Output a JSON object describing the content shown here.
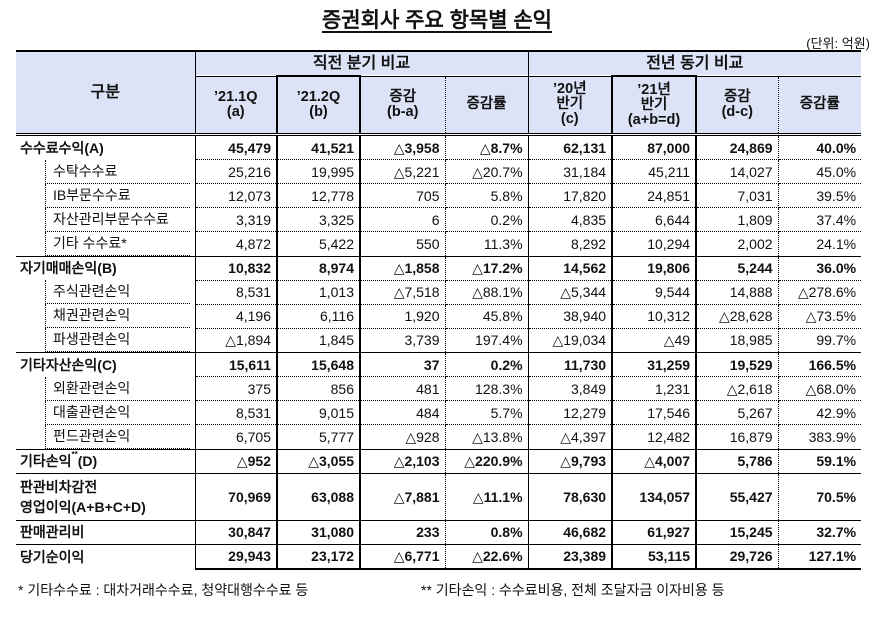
{
  "title": "증권회사 주요 항목별 손익",
  "unit": "(단위: 억원)",
  "header": {
    "row_label": "구분",
    "group1": "직전 분기 비교",
    "group2": "전년 동기 비교",
    "columns": [
      {
        "line1": "’21.1Q",
        "line2": "(a)"
      },
      {
        "line1": "’21.2Q",
        "line2": "(b)"
      },
      {
        "line1": "증감",
        "line2": "(b-a)"
      },
      {
        "line1": "증감률",
        "line2": ""
      },
      {
        "line1": "’20년",
        "line2": "반기",
        "line3": "(c)"
      },
      {
        "line1": "’21년",
        "line2": "반기",
        "line3": "(a+b=d)"
      },
      {
        "line1": "증감",
        "line2": "(d-c)"
      },
      {
        "line1": "증감률",
        "line2": ""
      }
    ]
  },
  "rows": [
    {
      "label": "수수료수익(A)",
      "type": "major",
      "values": [
        "45,479",
        "41,521",
        "△3,958",
        "△8.7%",
        "62,131",
        "87,000",
        "24,869",
        "40.0%"
      ]
    },
    {
      "label": "수탁수수료",
      "type": "sub",
      "values": [
        "25,216",
        "19,995",
        "△5,221",
        "△20.7%",
        "31,184",
        "45,211",
        "14,027",
        "45.0%"
      ]
    },
    {
      "label": "IB부문수수료",
      "type": "sub",
      "values": [
        "12,073",
        "12,778",
        "705",
        "5.8%",
        "17,820",
        "24,851",
        "7,031",
        "39.5%"
      ]
    },
    {
      "label": "자산관리부문수수료",
      "type": "sub",
      "values": [
        "3,319",
        "3,325",
        "6",
        "0.2%",
        "4,835",
        "6,644",
        "1,809",
        "37.4%"
      ]
    },
    {
      "label": "기타 수수료*",
      "type": "sub",
      "values": [
        "4,872",
        "5,422",
        "550",
        "11.3%",
        "8,292",
        "10,294",
        "2,002",
        "24.1%"
      ]
    },
    {
      "label": "자기매매손익(B)",
      "type": "major",
      "values": [
        "10,832",
        "8,974",
        "△1,858",
        "△17.2%",
        "14,562",
        "19,806",
        "5,244",
        "36.0%"
      ]
    },
    {
      "label": "주식관련손익",
      "type": "sub",
      "values": [
        "8,531",
        "1,013",
        "△7,518",
        "△88.1%",
        "△5,344",
        "9,544",
        "14,888",
        "△278.6%"
      ]
    },
    {
      "label": "채권관련손익",
      "type": "sub",
      "values": [
        "4,196",
        "6,116",
        "1,920",
        "45.8%",
        "38,940",
        "10,312",
        "△28,628",
        "△73.5%"
      ]
    },
    {
      "label": "파생관련손익",
      "type": "sub",
      "values": [
        "△1,894",
        "1,845",
        "3,739",
        "197.4%",
        "△19,034",
        "△49",
        "18,985",
        "99.7%"
      ]
    },
    {
      "label": "기타자산손익(C)",
      "type": "major",
      "values": [
        "15,611",
        "15,648",
        "37",
        "0.2%",
        "11,730",
        "31,259",
        "19,529",
        "166.5%"
      ]
    },
    {
      "label": "외환관련손익",
      "type": "sub",
      "values": [
        "375",
        "856",
        "481",
        "128.3%",
        "3,849",
        "1,231",
        "△2,618",
        "△68.0%"
      ]
    },
    {
      "label": "대출관련손익",
      "type": "sub",
      "values": [
        "8,531",
        "9,015",
        "484",
        "5.7%",
        "12,279",
        "17,546",
        "5,267",
        "42.9%"
      ]
    },
    {
      "label": "펀드관련손익",
      "type": "sub",
      "values": [
        "6,705",
        "5,777",
        "△928",
        "△13.8%",
        "△4,397",
        "12,482",
        "16,879",
        "383.9%"
      ]
    },
    {
      "label": "기타손익",
      "label_sup": "**",
      "label_suffix": "(D)",
      "type": "major",
      "values": [
        "△952",
        "△3,055",
        "△2,103",
        "△220.9%",
        "△9,793",
        "△4,007",
        "5,786",
        "59.1%"
      ]
    },
    {
      "label": "판관비차감전",
      "label_line2": "영업이익(A+B+C+D)",
      "type": "major-tall",
      "values": [
        "70,969",
        "63,088",
        "△7,881",
        "△11.1%",
        "78,630",
        "134,057",
        "55,427",
        "70.5%"
      ]
    },
    {
      "label": "판매관리비",
      "type": "major",
      "values": [
        "30,847",
        "31,080",
        "233",
        "0.8%",
        "46,682",
        "61,927",
        "15,245",
        "32.7%"
      ]
    },
    {
      "label": "당기순이익",
      "type": "major-final",
      "values": [
        "29,943",
        "23,172",
        "△6,771",
        "△22.6%",
        "23,389",
        "53,115",
        "29,726",
        "127.1%"
      ]
    }
  ],
  "footnotes": [
    "*  기타수수료 : 대차거래수수료, 청약대행수수료 등",
    "**  기타손익 : 수수료비용, 전체 조달자금 이자비용 등"
  ],
  "colors": {
    "header_bg": "#dde3f7",
    "border": "#000000"
  }
}
